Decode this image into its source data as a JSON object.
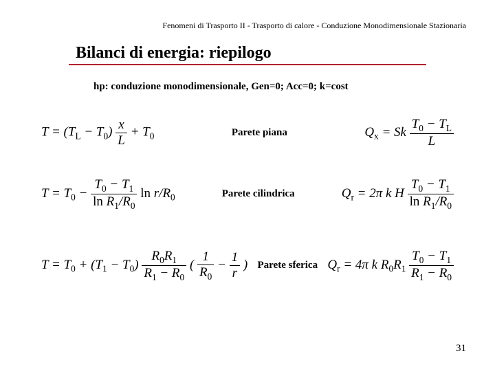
{
  "header": "Fenomeni di Trasporto II - Trasporto di calore - Conduzione Monodimensionale Stazionaria",
  "title": "Bilanci di energia: riepilogo",
  "hypothesis": "hp: conduzione monodimensionale, Gen=0; Acc=0; k=cost",
  "rows": {
    "plane": {
      "label": "Parete piana",
      "T_html": "<i>T</i> = (<i>T</i><span class='sub'>L</span> − <i>T</i><span class='sub'>0</span>) <span class='frac'><span class='num'><i>x</i></span><span class='den'><i>L</i></span></span> + <i>T</i><span class='sub'>0</span>",
      "Q_html": "<i>Q</i><span class='sub'>x</span> = <i>Sk</i> <span class='frac'><span class='num'><i>T</i><span class='sub'>0</span> − <i>T</i><span class='sub'>L</span></span><span class='den'><i>L</i></span></span>"
    },
    "cyl": {
      "label": "Parete cilindrica",
      "T_html": "<i>T</i> = <i>T</i><span class='sub'>0</span> − <span class='frac'><span class='num'><i>T</i><span class='sub'>0</span> − <i>T</i><span class='sub'>1</span></span><span class='den'><span class='rm'>ln</span> <i>R</i><span class='sub'>1</span>/<i>R</i><span class='sub'>0</span></span></span> <span class='rm'>ln</span> <i>r</i>/<i>R</i><span class='sub'>0</span>",
      "Q_html": "<i>Q</i><span class='sub'>r</span> = 2<i>π k H</i> <span class='frac'><span class='num'><i>T</i><span class='sub'>0</span> − <i>T</i><span class='sub'>1</span></span><span class='den'><span class='rm'>ln</span> <i>R</i><span class='sub'>1</span>/<i>R</i><span class='sub'>0</span></span></span>"
    },
    "sph": {
      "label": "Parete sferica",
      "T_html": "<i>T</i> = <i>T</i><span class='sub'>0</span> + (<i>T</i><span class='sub'>1</span> − <i>T</i><span class='sub'>0</span>) <span class='frac'><span class='num'><i>R</i><span class='sub'>0</span><i>R</i><span class='sub'>1</span></span><span class='den'><i>R</i><span class='sub'>1</span> − <i>R</i><span class='sub'>0</span></span></span> ( <span class='frac'><span class='num'>1</span><span class='den'><i>R</i><span class='sub'>0</span></span></span> − <span class='frac'><span class='num'>1</span><span class='den'><i>r</i></span></span> )",
      "Q_html": "<i>Q</i><span class='sub'>r</span> = 4<i>π k R</i><span class='sub'>0</span><i>R</i><span class='sub'>1</span> <span class='frac'><span class='num'><i>T</i><span class='sub'>0</span> − <i>T</i><span class='sub'>1</span></span><span class='den'><i>R</i><span class='sub'>1</span> − <i>R</i><span class='sub'>0</span></span></span>"
    }
  },
  "page_number": "31",
  "colors": {
    "rule": "#b22030",
    "text": "#000000",
    "bg": "#ffffff"
  },
  "fonts": {
    "header_pt": 12,
    "title_pt": 24,
    "body_pt": 15,
    "eq_pt": 19
  }
}
